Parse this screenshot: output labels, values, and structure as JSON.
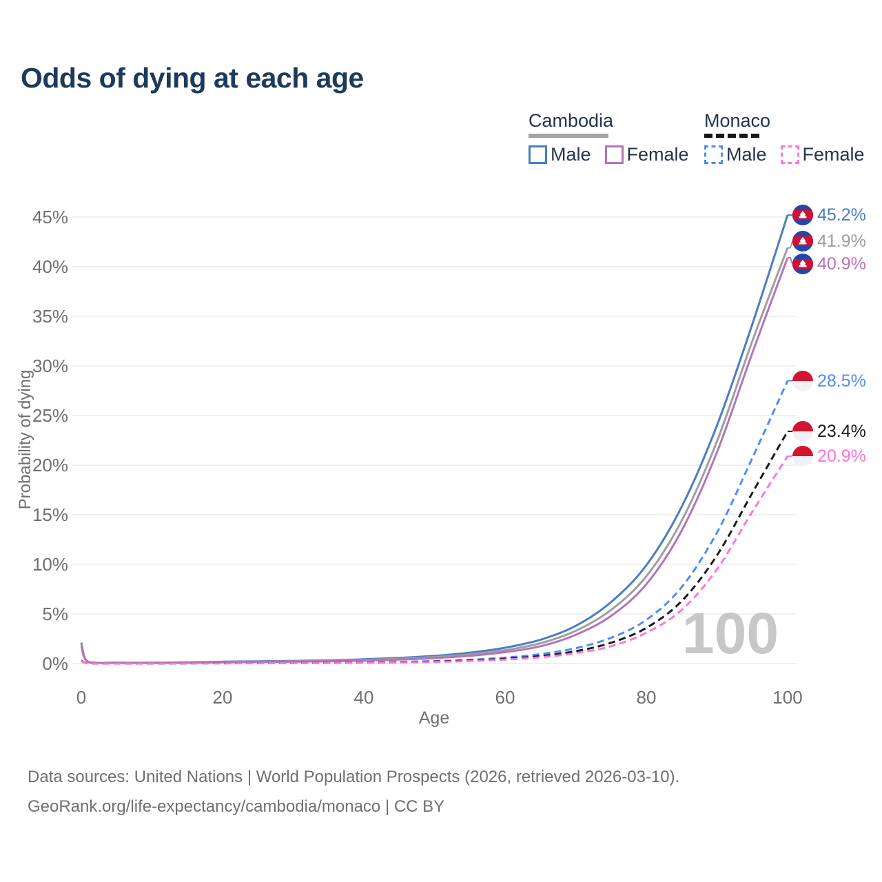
{
  "title": "Odds of dying at each age",
  "legend": {
    "groups": [
      {
        "label": "Cambodia",
        "line_style": "solid",
        "line_color": "#a3a3a3",
        "items": [
          {
            "label": "Male",
            "color": "#4a7cc3",
            "dashed": false
          },
          {
            "label": "Female",
            "color": "#b474b8",
            "dashed": false
          }
        ]
      },
      {
        "label": "Monaco",
        "line_style": "dashed",
        "line_color": "#161616",
        "items": [
          {
            "label": "Male",
            "color": "#4f8df5",
            "dashed": true
          },
          {
            "label": "Female",
            "color": "#ff74dc",
            "dashed": true
          }
        ]
      }
    ]
  },
  "watermark": "100",
  "footer": {
    "line1": "Data sources: United Nations | World Population Prospects (2026, retrieved 2026-03-10).",
    "line2": "GeoRank.org/life-expectancy/cambodia/monaco | CC BY"
  },
  "chart_data": {
    "type": "line",
    "title": "Odds of dying at each age",
    "xlabel": "Age",
    "ylabel": "Probability of dying",
    "xlim": [
      0,
      100
    ],
    "ylim": [
      0,
      45
    ],
    "x_ticks": [
      0,
      20,
      40,
      60,
      80,
      100
    ],
    "y_ticks": [
      "0%",
      "5%",
      "10%",
      "15%",
      "20%",
      "25%",
      "30%",
      "35%",
      "40%",
      "45%"
    ],
    "grid": "horizontal",
    "legend_position": "top-right",
    "ages": [
      0,
      1,
      5,
      10,
      15,
      20,
      25,
      30,
      35,
      40,
      45,
      50,
      55,
      60,
      65,
      70,
      75,
      80,
      85,
      90,
      95,
      100
    ],
    "series": [
      {
        "name": "Cambodia Male",
        "color": "#4a7cc3",
        "dashed": false,
        "flag": "cambodia",
        "end_label": "45.2%",
        "values": [
          2.1,
          0.16,
          0.09,
          0.08,
          0.13,
          0.19,
          0.23,
          0.27,
          0.33,
          0.43,
          0.57,
          0.78,
          1.1,
          1.6,
          2.4,
          3.8,
          6.2,
          9.9,
          15.8,
          24.0,
          34.2,
          45.2
        ]
      },
      {
        "name": "Cambodia Both sexes",
        "color": "#9e9e9e",
        "dashed": false,
        "flag": "cambodia",
        "end_label": "41.9%",
        "values": [
          1.95,
          0.15,
          0.08,
          0.07,
          0.11,
          0.15,
          0.19,
          0.22,
          0.28,
          0.36,
          0.48,
          0.66,
          0.93,
          1.35,
          2.05,
          3.3,
          5.4,
          8.8,
          14.4,
          22.4,
          32.5,
          41.9
        ]
      },
      {
        "name": "Cambodia Female",
        "color": "#b474b8",
        "dashed": false,
        "flag": "cambodia",
        "end_label": "40.9%",
        "values": [
          1.8,
          0.13,
          0.07,
          0.06,
          0.09,
          0.12,
          0.15,
          0.18,
          0.23,
          0.3,
          0.4,
          0.55,
          0.78,
          1.15,
          1.75,
          2.9,
          4.8,
          8.0,
          13.4,
          21.3,
          31.3,
          40.9
        ]
      },
      {
        "name": "Monaco Male",
        "color": "#4f8df5",
        "dashed": true,
        "flag": "monaco",
        "end_label": "28.5%",
        "values": [
          0.3,
          0.03,
          0.01,
          0.01,
          0.03,
          0.04,
          0.05,
          0.07,
          0.09,
          0.12,
          0.17,
          0.25,
          0.38,
          0.6,
          0.95,
          1.55,
          2.6,
          4.4,
          7.7,
          13.2,
          20.7,
          28.5
        ]
      },
      {
        "name": "Monaco Both sexes",
        "color": "#1b1b1b",
        "dashed": true,
        "flag": "monaco",
        "end_label": "23.4%",
        "values": [
          0.28,
          0.02,
          0.01,
          0.01,
          0.02,
          0.03,
          0.04,
          0.05,
          0.07,
          0.1,
          0.14,
          0.2,
          0.31,
          0.48,
          0.76,
          1.25,
          2.1,
          3.6,
          6.3,
          10.9,
          17.2,
          23.4
        ]
      },
      {
        "name": "Monaco Female",
        "color": "#ff74dc",
        "dashed": true,
        "flag": "monaco",
        "end_label": "20.9%",
        "values": [
          0.25,
          0.02,
          0.01,
          0.01,
          0.02,
          0.02,
          0.03,
          0.04,
          0.05,
          0.08,
          0.11,
          0.16,
          0.25,
          0.4,
          0.63,
          1.05,
          1.75,
          3.1,
          5.4,
          9.5,
          15.3,
          20.9
        ]
      }
    ]
  },
  "colors": {
    "title": "#1c3a5c",
    "grid": "#ebebeb",
    "tick_text": "#6f6f6f",
    "watermark": "#c7c7c7",
    "legend_text": "#23364e"
  }
}
